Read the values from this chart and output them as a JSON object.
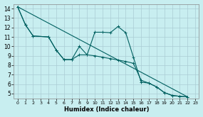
{
  "xlabel": "Humidex (Indice chaleur)",
  "bg_color": "#c8eef0",
  "grid_color": "#aaccd4",
  "line_color": "#006060",
  "xlim": [
    -0.5,
    23.5
  ],
  "ylim": [
    4.5,
    14.5
  ],
  "xticks": [
    0,
    1,
    2,
    3,
    4,
    5,
    6,
    7,
    8,
    9,
    10,
    11,
    12,
    13,
    14,
    15,
    16,
    17,
    18,
    19,
    20,
    21,
    22,
    23
  ],
  "yticks": [
    5,
    6,
    7,
    8,
    9,
    10,
    11,
    12,
    13,
    14
  ],
  "series1_x": [
    0,
    1,
    2,
    4,
    5,
    6,
    7,
    8,
    9,
    10,
    11,
    12,
    13,
    14,
    15,
    16,
    17,
    18,
    19,
    20,
    21,
    22
  ],
  "series1_y": [
    14.2,
    12.3,
    11.1,
    11.0,
    9.6,
    8.6,
    8.6,
    10.0,
    9.1,
    11.5,
    11.5,
    11.45,
    12.1,
    11.45,
    8.85,
    6.2,
    6.1,
    5.7,
    5.1,
    4.8,
    4.7,
    4.65
  ],
  "series2_x": [
    0,
    1,
    2,
    4,
    5,
    6,
    7,
    8,
    9,
    10,
    11,
    12,
    13,
    14,
    15,
    16,
    17,
    18,
    19,
    20,
    21,
    22
  ],
  "series2_y": [
    14.2,
    12.3,
    11.1,
    11.0,
    9.6,
    8.6,
    8.6,
    9.1,
    9.1,
    9.0,
    8.85,
    8.7,
    8.55,
    8.4,
    8.2,
    6.4,
    6.1,
    5.7,
    5.1,
    4.8,
    4.7,
    4.65
  ],
  "series3_x": [
    0,
    22
  ],
  "series3_y": [
    14.2,
    4.65
  ]
}
